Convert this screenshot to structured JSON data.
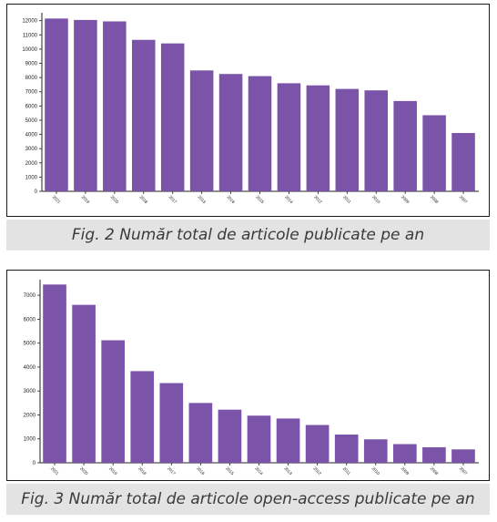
{
  "charts": [
    {
      "caption": "Fig. 2 Număr total de articole publicate pe an",
      "chart_data": {
        "type": "bar",
        "categories": [
          "2021",
          "2019",
          "2020",
          "2018",
          "2017",
          "2013",
          "2016",
          "2015",
          "2014",
          "2012",
          "2011",
          "2010",
          "2009",
          "2008",
          "2007"
        ],
        "values": [
          12150,
          12050,
          11950,
          10650,
          10400,
          8500,
          8250,
          8100,
          7600,
          7450,
          7200,
          7100,
          6350,
          5350,
          4100
        ],
        "yticks": [
          0,
          1000,
          2000,
          3000,
          4000,
          5000,
          6000,
          7000,
          8000,
          9000,
          10000,
          11000,
          12000
        ],
        "ylim": [
          0,
          12300
        ],
        "bar_color": "#7b54a9",
        "grid": false,
        "legend": "none"
      }
    },
    {
      "caption": "Fig. 3 Număr total de articole open-access publicate pe an",
      "chart_data": {
        "type": "bar",
        "categories": [
          "2021",
          "2020",
          "2019",
          "2018",
          "2017",
          "2016",
          "2015",
          "2014",
          "2013",
          "2012",
          "2011",
          "2010",
          "2009",
          "2008",
          "2007"
        ],
        "values": [
          7450,
          6600,
          5120,
          3830,
          3330,
          2500,
          2220,
          1970,
          1850,
          1580,
          1180,
          980,
          780,
          650,
          560
        ],
        "yticks": [
          0,
          1000,
          2000,
          3000,
          4000,
          5000,
          6000,
          7000
        ],
        "ylim": [
          0,
          7500
        ],
        "bar_color": "#7b54a9",
        "grid": false,
        "legend": "none"
      }
    }
  ]
}
